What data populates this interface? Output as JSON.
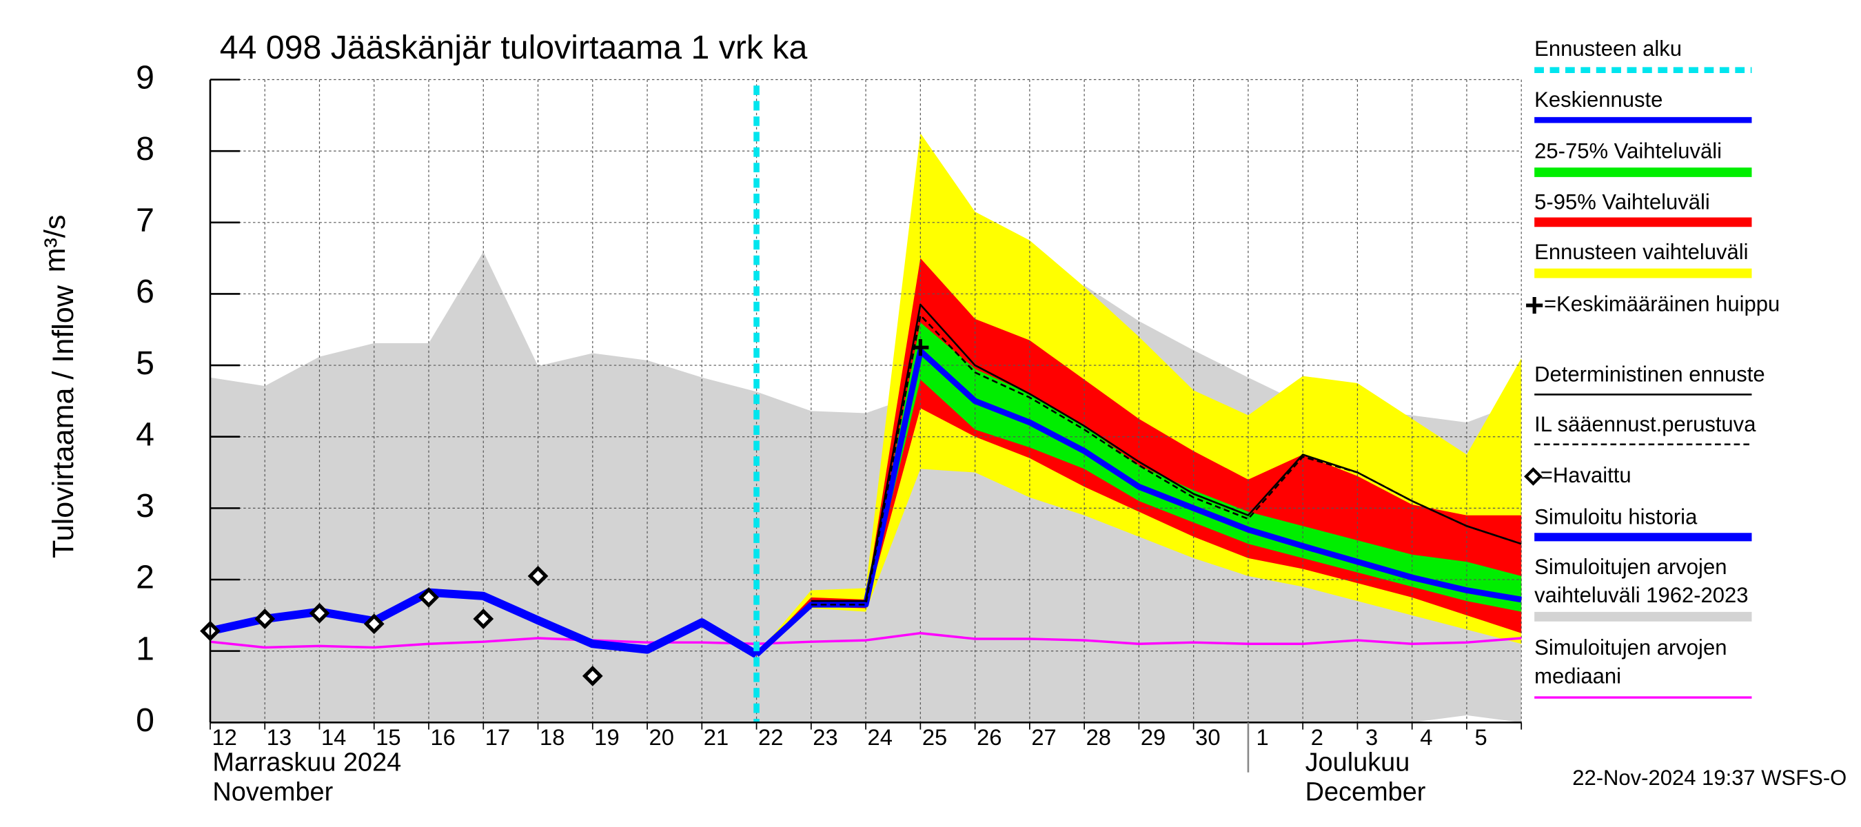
{
  "chart_data": {
    "type": "line",
    "title": "44 098 Jääskänjär tulovirtaama 1 vrk ka",
    "y_label": "Tulovirtaama / Inflow",
    "y_unit": "m³/s",
    "footer": "22-Nov-2024 19:37 WSFS-O",
    "categories": [
      "12",
      "13",
      "14",
      "15",
      "16",
      "17",
      "18",
      "19",
      "20",
      "21",
      "22",
      "23",
      "24",
      "25",
      "26",
      "27",
      "28",
      "29",
      "30",
      "1",
      "2",
      "3",
      "4",
      "5",
      null
    ],
    "months": [
      {
        "fi": "Marraskuu 2024",
        "en": "November",
        "start": 0
      },
      {
        "fi": "Joulukuu",
        "en": "December",
        "start": 19
      }
    ],
    "ylim": [
      0,
      9
    ],
    "yticks": [
      0,
      1,
      2,
      3,
      4,
      5,
      6,
      7,
      8,
      9
    ],
    "grid": true,
    "forecast_start": {
      "name": "Ennusteen alku",
      "color": "#00e5ee",
      "index": 10
    },
    "bands": [
      {
        "name": "Simuloitujen arvojen vaihteluväli 1962-2023",
        "color": "#d3d3d3",
        "lower": [
          0,
          0,
          0,
          0,
          0,
          0,
          0,
          0,
          0,
          0,
          0,
          0,
          0,
          0,
          0,
          0,
          0,
          0,
          0,
          0,
          0,
          0,
          0,
          0.1,
          0
        ],
        "upper": [
          4.83,
          4.71,
          5.12,
          5.31,
          5.31,
          6.59,
          4.99,
          5.17,
          5.07,
          4.83,
          4.63,
          4.36,
          4.33,
          4.6,
          4.9,
          5.3,
          6.12,
          5.62,
          5.21,
          4.83,
          4.46,
          4.38,
          4.3,
          4.2,
          4.49
        ]
      },
      {
        "name": "Ennusteen vaihteluväli",
        "color": "#ffff00",
        "lower": [
          null,
          null,
          null,
          null,
          null,
          null,
          null,
          null,
          null,
          null,
          0.95,
          1.6,
          1.55,
          3.55,
          3.5,
          3.15,
          2.9,
          2.6,
          2.3,
          2.05,
          1.9,
          1.7,
          1.5,
          1.3,
          1.1
        ],
        "upper": [
          null,
          null,
          null,
          null,
          null,
          null,
          null,
          null,
          null,
          null,
          0.95,
          1.85,
          1.88,
          8.25,
          7.15,
          6.75,
          6.1,
          5.4,
          4.65,
          4.3,
          4.85,
          4.75,
          4.25,
          3.75,
          5.1
        ]
      },
      {
        "name": "5-95% Vaihteluväli",
        "color": "#ff0000",
        "lower": [
          null,
          null,
          null,
          null,
          null,
          null,
          null,
          null,
          null,
          null,
          0.95,
          1.62,
          1.6,
          4.4,
          4.0,
          3.7,
          3.3,
          2.95,
          2.6,
          2.3,
          2.15,
          1.95,
          1.75,
          1.5,
          1.25
        ],
        "upper": [
          null,
          null,
          null,
          null,
          null,
          null,
          null,
          null,
          null,
          null,
          0.95,
          1.75,
          1.72,
          6.5,
          5.65,
          5.35,
          4.8,
          4.25,
          3.8,
          3.4,
          3.75,
          3.45,
          3.05,
          2.9,
          2.9
        ]
      },
      {
        "name": "25-75% Vaihteluväli",
        "color": "#00ee00",
        "lower": [
          null,
          null,
          null,
          null,
          null,
          null,
          null,
          null,
          null,
          null,
          0.95,
          1.63,
          1.62,
          4.8,
          4.1,
          3.85,
          3.55,
          3.1,
          2.8,
          2.5,
          2.3,
          2.1,
          1.9,
          1.7,
          1.55
        ],
        "upper": [
          null,
          null,
          null,
          null,
          null,
          null,
          null,
          null,
          null,
          null,
          0.95,
          1.68,
          1.68,
          5.6,
          4.95,
          4.6,
          4.15,
          3.6,
          3.25,
          2.95,
          2.75,
          2.55,
          2.35,
          2.25,
          2.05
        ]
      }
    ],
    "series": [
      {
        "name": "Simuloitujen arvojen mediaani",
        "color": "#ff00ff",
        "width": 2,
        "values": [
          1.13,
          1.05,
          1.07,
          1.05,
          1.1,
          1.13,
          1.18,
          1.15,
          1.12,
          1.12,
          1.1,
          1.13,
          1.15,
          1.25,
          1.17,
          1.17,
          1.15,
          1.1,
          1.12,
          1.1,
          1.1,
          1.15,
          1.1,
          1.12,
          1.18
        ]
      },
      {
        "name": "Simuloitu historia",
        "color": "#0000ff",
        "width": 7,
        "values": [
          1.28,
          1.45,
          1.55,
          1.42,
          1.82,
          1.77,
          1.43,
          1.1,
          1.02,
          1.4,
          0.95,
          null,
          null,
          null,
          null,
          null,
          null,
          null,
          null,
          null,
          null,
          null,
          null,
          null,
          null
        ]
      },
      {
        "name": "Keskiennuste",
        "color": "#0000ff",
        "width": 5,
        "values": [
          null,
          null,
          null,
          null,
          null,
          null,
          null,
          null,
          null,
          null,
          0.95,
          1.65,
          1.65,
          5.2,
          4.5,
          4.2,
          3.8,
          3.3,
          3.0,
          2.7,
          2.47,
          2.25,
          2.03,
          1.85,
          1.72
        ]
      },
      {
        "name": "Deterministinen ennuste",
        "color": "#000000",
        "width": 1.5,
        "values": [
          null,
          null,
          null,
          null,
          null,
          null,
          null,
          null,
          null,
          null,
          null,
          1.7,
          1.7,
          5.85,
          5.0,
          4.6,
          4.15,
          3.65,
          3.2,
          2.9,
          3.75,
          3.5,
          3.1,
          2.75,
          2.5
        ]
      },
      {
        "name": "IL sääennust.perustuva",
        "color": "#000000",
        "width": 1.5,
        "dash": true,
        "values": [
          null,
          null,
          null,
          null,
          null,
          null,
          null,
          null,
          null,
          null,
          null,
          1.65,
          1.65,
          5.7,
          4.9,
          4.55,
          4.1,
          3.6,
          3.15,
          2.85,
          3.72,
          3.5,
          3.1,
          2.75,
          2.5
        ]
      },
      {
        "name": "=Havaittu",
        "color": "#000000",
        "marker": "diamond",
        "values": [
          1.28,
          1.45,
          1.53,
          1.38,
          1.75,
          1.45,
          2.05,
          0.65,
          null,
          null,
          null,
          null,
          null,
          null,
          null,
          null,
          null,
          null,
          null,
          null,
          null,
          null,
          null,
          null,
          null
        ]
      }
    ],
    "peak": {
      "name": "=Keskimääräinen huippu",
      "index": 13,
      "value": 5.25
    }
  }
}
